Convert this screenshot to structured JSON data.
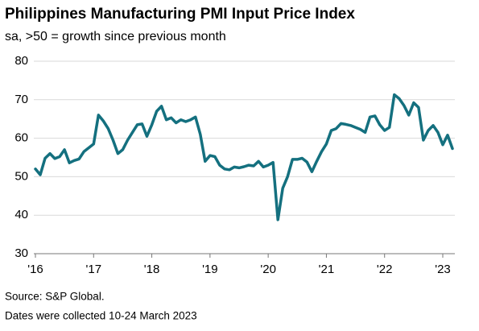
{
  "chart_data": {
    "type": "line",
    "title": "Philippines Manufacturing PMI Input Price Index",
    "subtitle": "sa, >50 = growth since previous month",
    "notes": [
      "Source: S&P Global.",
      "Dates were collected 10-24 March 2023"
    ],
    "categories": [
      "'16",
      null,
      null,
      null,
      null,
      null,
      null,
      null,
      null,
      null,
      null,
      null,
      "'17",
      null,
      null,
      null,
      null,
      null,
      null,
      null,
      null,
      null,
      null,
      null,
      "'18",
      null,
      null,
      null,
      null,
      null,
      null,
      null,
      null,
      null,
      null,
      null,
      "'19",
      null,
      null,
      null,
      null,
      null,
      null,
      null,
      null,
      null,
      null,
      null,
      "'20",
      null,
      null,
      null,
      null,
      null,
      null,
      null,
      null,
      null,
      null,
      null,
      "'21",
      null,
      null,
      null,
      null,
      null,
      null,
      null,
      null,
      null,
      null,
      null,
      "'22",
      null,
      null,
      null,
      null,
      null,
      null,
      null,
      null,
      null,
      null,
      null,
      "'23",
      null,
      null
    ],
    "values": [
      52,
      50.5,
      54.8,
      56,
      54.7,
      55.2,
      57,
      53.6,
      54.2,
      54.6,
      56.5,
      57.5,
      58.5,
      66,
      64.5,
      62.5,
      59.5,
      56,
      57,
      59.5,
      61.5,
      63.5,
      63.7,
      60.5,
      63.5,
      67,
      68.3,
      64.8,
      65.3,
      64,
      64.8,
      64.3,
      64.8,
      65.5,
      61,
      54,
      55.5,
      55.2,
      53,
      52,
      51.8,
      52.5,
      52.3,
      52.6,
      53,
      52.8,
      54,
      52.5,
      53,
      53.7,
      38.8,
      47,
      50,
      54.5,
      54.5,
      54.8,
      53.8,
      51.3,
      54,
      56.5,
      58.5,
      62,
      62.5,
      63.8,
      63.6,
      63.3,
      62.8,
      62.3,
      61.5,
      65.5,
      65.8,
      63.5,
      62,
      62.8,
      71.3,
      70.3,
      68.5,
      66,
      69.2,
      68,
      59.5,
      62,
      63.3,
      61.5,
      58.3,
      60.8,
      57.3
    ],
    "color": "#14707f",
    "ylim": [
      30,
      80
    ],
    "yticks": [
      30,
      40,
      50,
      60,
      70,
      80
    ],
    "grid": true
  }
}
